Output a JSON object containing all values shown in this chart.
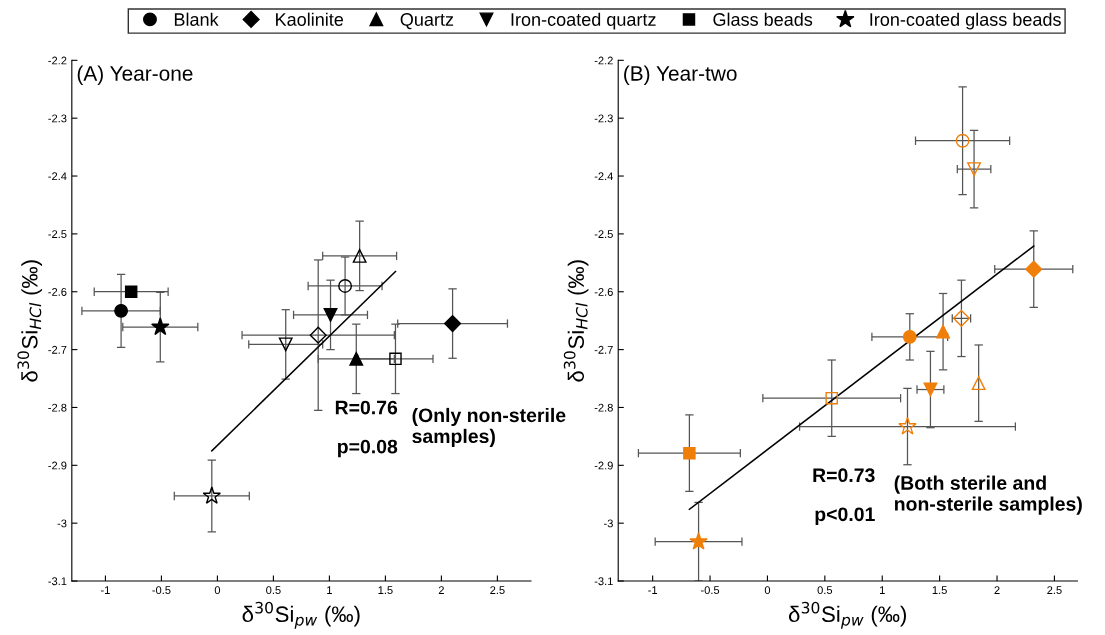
{
  "chart_data": [
    {
      "type": "scatter",
      "title": "(A) Year-one",
      "xlabel": "δ$^{30}$Si$_{pw}$ (‰)",
      "ylabel": "δ$^{30}$Si$_{HCl}$ (‰)",
      "xlim": [
        -1.3,
        2.8
      ],
      "ylim": [
        -3.1,
        -2.2
      ],
      "xticks": [
        -1,
        -0.5,
        0,
        0.5,
        1,
        1.5,
        2,
        2.5
      ],
      "yticks": [
        -3.1,
        -3,
        -2.9,
        -2.8,
        -2.7,
        -2.6,
        -2.5,
        -2.4,
        -2.3,
        -2.2
      ],
      "grid": false,
      "legend": "top",
      "annotations": [
        "R=0.76",
        "p=0.08",
        "(Only non-sterile\nsamples)"
      ],
      "series": [
        {
          "name": "Blank",
          "color": "#000000",
          "marker": "circle",
          "x": [
            -0.86
          ],
          "values": [
            -2.633
          ],
          "xerrors": [
            0.35
          ],
          "errors": [
            0.063
          ]
        },
        {
          "name": "Kaolinite",
          "color": "#000000",
          "marker": "diamond",
          "x": [
            2.1
          ],
          "values": [
            -2.655
          ],
          "xerrors": [
            0.49
          ],
          "errors": [
            0.06
          ]
        },
        {
          "name": "Quartz",
          "color": "#000000",
          "marker": "triangle",
          "x": [
            1.24
          ],
          "values": [
            -2.716
          ],
          "xerrors": [
            0.34
          ],
          "errors": [
            0.06
          ]
        },
        {
          "name": "Iron-coated quartz",
          "color": "#000000",
          "marker": "triangle_down",
          "x": [
            1.01
          ],
          "values": [
            -2.64
          ],
          "xerrors": [
            0.33
          ],
          "errors": [
            0.06
          ]
        },
        {
          "name": "Glass beads",
          "color": "#000000",
          "marker": "square",
          "x": [
            -0.77
          ],
          "values": [
            -2.6
          ],
          "xerrors": [
            0.33
          ],
          "errors": [
            null
          ]
        },
        {
          "name": "Iron-coated glass beads",
          "color": "#000000",
          "marker": "star",
          "x": [
            -0.51
          ],
          "values": [
            -2.661
          ],
          "xerrors": [
            0.335
          ],
          "errors": [
            0.06
          ]
        },
        {
          "color": "#000000",
          "marker": "circle-open",
          "x": [
            1.14
          ],
          "values": [
            -2.59
          ],
          "xerrors": [
            0.33
          ],
          "errors": [
            0.05
          ]
        },
        {
          "color": "#000000",
          "marker": "diamond-open",
          "x": [
            0.9
          ],
          "values": [
            -2.675
          ],
          "xerrors": [
            0.68
          ],
          "errors": [
            0.13
          ]
        },
        {
          "color": "#000000",
          "marker": "triangle-open",
          "x": [
            1.27
          ],
          "values": [
            -2.538
          ],
          "xerrors": [
            0.33
          ],
          "errors": [
            0.06
          ]
        },
        {
          "color": "#000000",
          "marker": "triangle_down-open",
          "x": [
            0.61
          ],
          "values": [
            -2.691
          ],
          "xerrors": [
            0.33
          ],
          "errors": [
            0.06
          ]
        },
        {
          "color": "#000000",
          "marker": "square-open",
          "x": [
            1.59
          ],
          "values": [
            -2.716
          ],
          "xerrors": [
            0.335
          ],
          "errors": [
            0.06
          ]
        },
        {
          "color": "#000000",
          "marker": "star-open",
          "x": [
            -0.05
          ],
          "values": [
            -2.953
          ],
          "xerrors": [
            0.335
          ],
          "errors": [
            0.062
          ]
        },
        {
          "type": "line",
          "color": "#000000",
          "x": [
            -0.05,
            1.59
          ],
          "values": [
            -2.875,
            -2.565
          ]
        }
      ]
    },
    {
      "type": "scatter",
      "title": "(B) Year-two",
      "xlabel": "δ$^{30}$Si$_{pw}$ (‰)",
      "ylabel": "δ$^{30}$Si$_{HCl}$ (‰)",
      "xlim": [
        -1.3,
        2.7
      ],
      "ylim": [
        -3.1,
        -2.2
      ],
      "xticks": [
        -1,
        -0.5,
        0,
        0.5,
        1,
        1.5,
        2,
        2.5
      ],
      "yticks": [
        -3.1,
        -3,
        -2.9,
        -2.8,
        -2.7,
        -2.6,
        -2.5,
        -2.4,
        -2.3,
        -2.2
      ],
      "grid": false,
      "annotations": [
        "R=0.73",
        "p<0.01",
        "(Both sterile and\nnon-sterile samples)"
      ],
      "series": [
        {
          "color": "#f07f09",
          "marker": "circle",
          "x": [
            1.24
          ],
          "values": [
            -2.678
          ],
          "xerrors": [
            0.33
          ],
          "errors": [
            0.04
          ]
        },
        {
          "color": "#f07f09",
          "marker": "diamond",
          "x": [
            2.32
          ],
          "values": [
            -2.561
          ],
          "xerrors": [
            0.34
          ],
          "errors": [
            0.066
          ]
        },
        {
          "color": "#f07f09",
          "marker": "triangle",
          "x": [
            1.53
          ],
          "values": [
            -2.669
          ],
          "xerrors": [
            null
          ],
          "errors": [
            0.066
          ]
        },
        {
          "color": "#f07f09",
          "marker": "triangle_down",
          "x": [
            1.42
          ],
          "values": [
            -2.769
          ],
          "xerrors": [
            0.117
          ],
          "errors": [
            0.066
          ]
        },
        {
          "color": "#f07f09",
          "marker": "square",
          "x": [
            -0.68
          ],
          "values": [
            -2.879
          ],
          "xerrors": [
            0.444
          ],
          "errors": [
            0.066
          ]
        },
        {
          "color": "#f07f09",
          "marker": "star",
          "x": [
            -0.6
          ],
          "values": [
            -3.032
          ],
          "xerrors": [
            0.378
          ],
          "errors": [
            0.068
          ]
        },
        {
          "color": "#f07f09",
          "marker": "circle-open",
          "x": [
            1.7
          ],
          "values": [
            -2.339
          ],
          "xerrors": [
            0.41
          ],
          "errors": [
            0.093
          ]
        },
        {
          "color": "#f07f09",
          "marker": "diamond-open",
          "x": [
            1.69
          ],
          "values": [
            -2.646
          ],
          "xerrors": [
            0.08
          ],
          "errors": [
            0.066
          ]
        },
        {
          "color": "#f07f09",
          "marker": "triangle-open",
          "x": [
            1.84
          ],
          "values": [
            -2.758
          ],
          "xerrors": [
            null
          ],
          "errors": [
            0.066
          ]
        },
        {
          "color": "#f07f09",
          "marker": "triangle_down-open",
          "x": [
            1.8
          ],
          "values": [
            -2.388
          ],
          "xerrors": [
            0.146
          ],
          "errors": [
            0.067
          ]
        },
        {
          "color": "#f07f09",
          "marker": "square-open",
          "x": [
            0.56
          ],
          "values": [
            -2.784
          ],
          "xerrors": [
            0.6
          ],
          "errors": [
            0.066
          ]
        },
        {
          "color": "#f07f09",
          "marker": "star-open",
          "x": [
            1.22
          ],
          "values": [
            -2.833
          ],
          "xerrors": [
            0.94
          ],
          "errors": [
            0.066
          ]
        },
        {
          "type": "line",
          "color": "#000000",
          "x": [
            -0.68,
            2.32
          ],
          "values": [
            -2.976,
            -2.521
          ]
        }
      ]
    }
  ]
}
